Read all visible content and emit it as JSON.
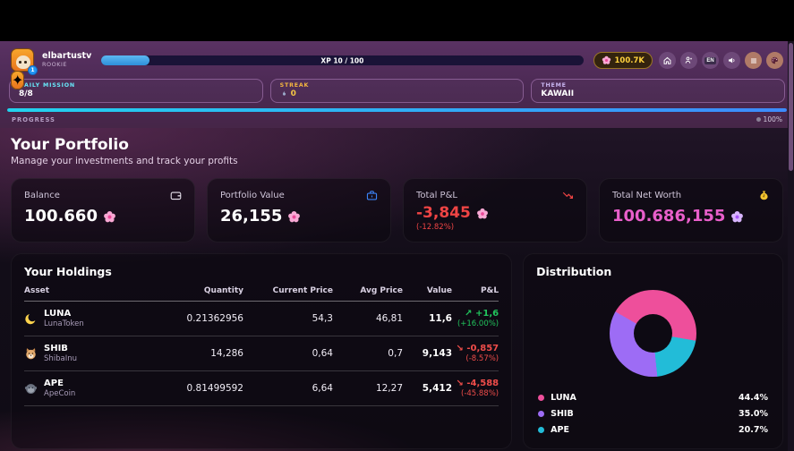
{
  "topbar": {
    "username": "elbartustv",
    "rank": "ROOKIE",
    "level_badge": "1",
    "xp_text": "XP 10 / 100",
    "xp_percent": 10,
    "currency_amount": "100.7K",
    "language_label": "EN",
    "icons": [
      "petal-currency-icon",
      "home-icon",
      "player-icon",
      "language-flag",
      "volume-icon",
      "menu-icon",
      "palette-icon"
    ]
  },
  "mission_row": {
    "daily_mission_label": "DAILY MISSION",
    "daily_mission_value": "8/8",
    "streak_label": "STREAK",
    "streak_value": "0",
    "theme_label": "THEME",
    "theme_value": "KAWAII"
  },
  "progress": {
    "label": "PROGRESS",
    "value": "100%",
    "percent": 100
  },
  "portfolio": {
    "title": "Your Portfolio",
    "subtitle": "Manage your investments and track your profits",
    "stats": [
      {
        "label": "Balance",
        "value": "100.660",
        "icon": "wallet-icon"
      },
      {
        "label": "Portfolio Value",
        "value": "26,155",
        "icon": "briefcase-icon"
      },
      {
        "label": "Total P&L",
        "value": "-3,845",
        "sub": "(-12.82%)",
        "icon": "trending-down-icon",
        "color": "#ef4444"
      },
      {
        "label": "Total Net Worth",
        "value": "100.686,155",
        "icon": "money-bag-icon",
        "color": "#e85fca"
      }
    ]
  },
  "holdings": {
    "title": "Your Holdings",
    "columns": [
      "Asset",
      "Quantity",
      "Current Price",
      "Avg Price",
      "Value",
      "P&L"
    ],
    "rows": [
      {
        "symbol": "LUNA",
        "name": "LunaToken",
        "icon": "moon-icon",
        "quantity": "0.21362956",
        "current_price": "54,3",
        "avg_price": "46,81",
        "value": "11,6",
        "trend": "up",
        "trend_arrow": "↗",
        "pnl": "+1,6",
        "pnl_pct": "(+16.00%)"
      },
      {
        "symbol": "SHIB",
        "name": "ShibaInu",
        "icon": "dog-icon",
        "quantity": "14,286",
        "current_price": "0,64",
        "avg_price": "0,7",
        "value": "9,143",
        "trend": "down",
        "trend_arrow": "↘",
        "pnl": "-0,857",
        "pnl_pct": "(-8.57%)"
      },
      {
        "symbol": "APE",
        "name": "ApeCoin",
        "icon": "ape-icon",
        "quantity": "0.81499592",
        "current_price": "6,64",
        "avg_price": "12,27",
        "value": "5,412",
        "trend": "down",
        "trend_arrow": "↘",
        "pnl": "-4,588",
        "pnl_pct": "(-45.88%)"
      }
    ]
  },
  "distribution": {
    "title": "Distribution",
    "legend": [
      {
        "label": "LUNA",
        "value": "44.4%",
        "color": "#ee4f9b"
      },
      {
        "label": "SHIB",
        "value": "35.0%",
        "color": "#9d6cf5"
      },
      {
        "label": "APE",
        "value": "20.7%",
        "color": "#22bcd8"
      }
    ]
  },
  "chart_data": {
    "type": "pie",
    "title": "Distribution",
    "categories": [
      "LUNA",
      "SHIB",
      "APE"
    ],
    "values": [
      44.4,
      35.0,
      20.7
    ],
    "colors": [
      "#ee4f9b",
      "#9d6cf5",
      "#22bcd8"
    ],
    "donut": true,
    "donut_hole_ratio": 0.45,
    "start_angle_deg": 300,
    "clockwise_order": [
      "LUNA",
      "APE",
      "SHIB"
    ],
    "legend_position": "bottom"
  },
  "status_colors": {
    "positive": "#21c55d",
    "negative": "#ef4444",
    "xp_bar": "#2e8fd9",
    "progress_bar": "#22d3ee"
  }
}
